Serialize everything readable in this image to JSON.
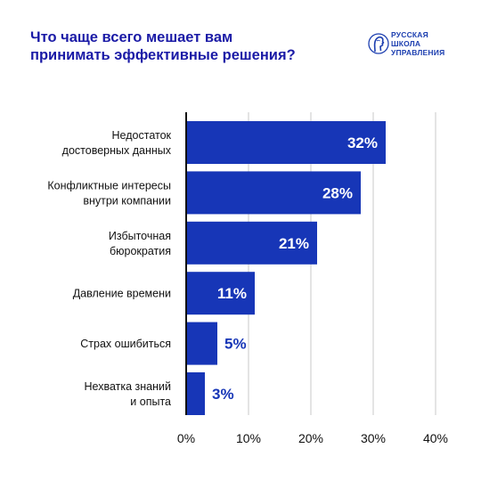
{
  "header": {
    "title": "Что чаще всего мешает вам\nпринимать эффективные решения?"
  },
  "logo": {
    "lines": [
      "РУССКАЯ",
      "ШКОЛА",
      "УПРАВЛЕНИЯ"
    ],
    "icon": "profile-head-logo-icon"
  },
  "colors": {
    "bar": "#1736b7",
    "title": "#1a1aa6",
    "value_inside": "#ffffff",
    "value_outside": "#1736b7",
    "grid": "#c8c8c8",
    "axis": "#111111"
  },
  "chart_data": {
    "type": "bar",
    "orientation": "horizontal",
    "categories": [
      "Недостаток\nдостоверных данных",
      "Конфликтные интересы\nвнутри компании",
      "Избыточная\nбюрократия",
      "Давление времени",
      "Страх ошибиться",
      "Нехватка знаний\nи опыта"
    ],
    "values": [
      32,
      28,
      21,
      11,
      5,
      3
    ],
    "value_labels": [
      "32%",
      "28%",
      "21%",
      "11%",
      "5%",
      "3%"
    ],
    "xlim": [
      0,
      40
    ],
    "xticks": [
      0,
      10,
      20,
      30,
      40
    ],
    "xtick_labels": [
      "0%",
      "10%",
      "20%",
      "30%",
      "40%"
    ],
    "grid": "vertical"
  }
}
